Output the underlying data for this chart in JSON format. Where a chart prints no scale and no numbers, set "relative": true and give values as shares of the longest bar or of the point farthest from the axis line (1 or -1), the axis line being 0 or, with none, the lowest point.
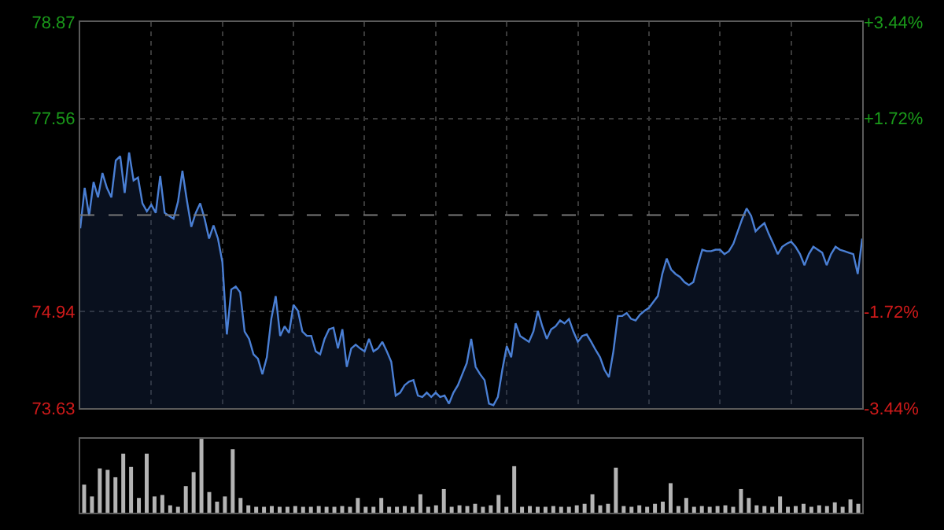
{
  "chart_data": [
    {
      "type": "area",
      "color": "#4a7fd4",
      "grid": true,
      "ylim": [
        73.63,
        78.87
      ],
      "yticks": [
        73.63,
        74.94,
        77.56,
        78.87
      ],
      "y2lim": [
        -3.44,
        3.44
      ],
      "y2ticks": [
        {
          "value": -3.44,
          "label": "-3.44%"
        },
        {
          "value": -1.72,
          "label": "-1.72%"
        },
        {
          "value": 1.72,
          "label": "+1.72%"
        },
        {
          "value": 3.44,
          "label": "+3.44%"
        }
      ],
      "ref_lines": [
        {
          "axis": "y",
          "value": 76.25,
          "line_style": "dashed"
        }
      ],
      "categories": [
        null,
        null,
        null,
        null,
        null,
        null,
        null,
        null,
        null,
        null,
        null,
        null,
        null,
        null,
        null,
        null,
        null,
        null,
        null,
        null,
        null,
        null,
        null,
        null,
        null,
        null,
        null,
        null,
        null,
        null,
        null,
        null,
        null,
        null,
        null,
        null,
        null,
        null,
        null,
        null,
        null,
        null,
        null,
        null,
        null,
        null,
        null,
        null,
        null,
        null,
        null,
        null,
        null,
        null,
        null,
        null,
        null,
        null,
        null,
        null,
        null,
        null,
        null,
        null,
        null,
        null,
        null,
        null,
        null,
        null,
        null,
        null,
        null,
        null,
        null,
        null,
        null,
        null,
        null,
        null,
        null,
        null,
        null,
        null,
        null,
        null,
        null,
        null,
        null,
        null,
        null,
        null,
        null,
        null,
        null,
        null,
        null,
        null,
        null,
        null,
        null,
        null,
        null,
        null,
        null,
        null,
        null,
        null,
        null,
        null,
        null,
        null,
        null,
        null,
        null,
        null,
        null,
        null,
        null,
        null,
        null,
        null,
        null,
        null,
        null,
        null,
        null,
        null,
        null,
        null,
        null,
        null,
        null,
        null,
        null,
        null,
        null,
        null,
        null,
        null,
        null,
        null,
        null,
        null,
        null,
        null,
        null,
        null,
        null,
        null,
        null,
        null,
        null,
        null,
        null,
        null,
        null,
        null,
        null,
        null,
        null,
        null,
        null,
        null,
        null,
        null,
        null,
        null,
        null,
        null,
        null,
        null,
        null,
        null,
        null,
        null,
        null
      ],
      "values": [
        76.07,
        76.62,
        76.24,
        76.7,
        76.49,
        76.82,
        76.62,
        76.49,
        76.99,
        77.05,
        76.55,
        77.1,
        76.72,
        76.76,
        76.41,
        76.3,
        76.39,
        76.28,
        76.78,
        76.28,
        76.24,
        76.2,
        76.43,
        76.85,
        76.45,
        76.09,
        76.28,
        76.41,
        76.2,
        75.93,
        76.11,
        75.93,
        75.61,
        74.63,
        75.24,
        75.28,
        75.2,
        74.67,
        74.57,
        74.36,
        74.3,
        74.09,
        74.32,
        74.84,
        75.15,
        74.61,
        74.74,
        74.65,
        75.03,
        74.95,
        74.67,
        74.61,
        74.61,
        74.4,
        74.36,
        74.57,
        74.7,
        74.72,
        74.44,
        74.7,
        74.19,
        74.44,
        74.49,
        74.44,
        74.4,
        74.57,
        74.4,
        74.44,
        74.53,
        74.4,
        74.26,
        73.8,
        73.84,
        73.94,
        73.99,
        74.01,
        73.8,
        73.78,
        73.84,
        73.78,
        73.84,
        73.78,
        73.8,
        73.69,
        73.84,
        73.94,
        74.09,
        74.24,
        74.57,
        74.19,
        74.09,
        74.01,
        73.69,
        73.67,
        73.78,
        74.15,
        74.47,
        74.32,
        74.78,
        74.61,
        74.57,
        74.53,
        74.67,
        74.95,
        74.74,
        74.57,
        74.7,
        74.74,
        74.82,
        74.78,
        74.84,
        74.67,
        74.53,
        74.61,
        74.63,
        74.53,
        74.42,
        74.32,
        74.15,
        74.05,
        74.4,
        74.88,
        74.88,
        74.92,
        74.84,
        74.82,
        74.9,
        74.95,
        74.99,
        75.07,
        75.15,
        75.45,
        75.66,
        75.51,
        75.45,
        75.41,
        75.34,
        75.3,
        75.34,
        75.57,
        75.78,
        75.76,
        75.76,
        75.78,
        75.78,
        75.72,
        75.76,
        75.86,
        76.03,
        76.2,
        76.34,
        76.24,
        76.03,
        76.09,
        76.14,
        75.99,
        75.86,
        75.72,
        75.82,
        75.86,
        75.89,
        75.82,
        75.72,
        75.57,
        75.72,
        75.82,
        75.78,
        75.74,
        75.57,
        75.72,
        75.82,
        75.78,
        75.76,
        75.74,
        75.72,
        75.45,
        75.93
      ]
    },
    {
      "type": "bar",
      "relative": true,
      "color": "#b4b4b4",
      "categories": [
        null,
        null,
        null,
        null,
        null,
        null,
        null,
        null,
        null,
        null,
        null,
        null,
        null,
        null,
        null,
        null,
        null,
        null,
        null,
        null,
        null,
        null,
        null,
        null,
        null,
        null,
        null,
        null,
        null,
        null,
        null,
        null,
        null,
        null,
        null,
        null,
        null,
        null,
        null,
        null,
        null,
        null,
        null,
        null,
        null,
        null,
        null,
        null,
        null,
        null,
        null,
        null,
        null,
        null,
        null,
        null,
        null,
        null,
        null,
        null,
        null,
        null,
        null,
        null,
        null,
        null,
        null,
        null,
        null,
        null,
        null,
        null,
        null,
        null,
        null,
        null,
        null,
        null,
        null,
        null,
        null,
        null,
        null,
        null,
        null,
        null,
        null,
        null,
        null,
        null,
        null,
        null,
        null,
        null,
        null,
        null,
        null,
        null,
        null,
        null
      ],
      "values": [
        0.38,
        0.22,
        0.6,
        0.58,
        0.48,
        0.8,
        0.62,
        0.2,
        0.8,
        0.22,
        0.24,
        0.1,
        0.08,
        0.36,
        0.55,
        1,
        0.28,
        0.15,
        0.22,
        0.86,
        0.2,
        0.1,
        0.08,
        0.08,
        0.09,
        0.08,
        0.08,
        0.09,
        0.08,
        0.08,
        0.09,
        0.08,
        0.08,
        0.09,
        0.08,
        0.2,
        0.08,
        0.08,
        0.2,
        0.08,
        0.08,
        0.09,
        0.08,
        0.25,
        0.08,
        0.1,
        0.32,
        0.08,
        0.1,
        0.09,
        0.12,
        0.08,
        0.1,
        0.24,
        0.08,
        0.63,
        0.08,
        0.09,
        0.08,
        0.08,
        0.09,
        0.08,
        0.08,
        0.1,
        0.12,
        0.25,
        0.1,
        0.12,
        0.61,
        0.09,
        0.08,
        0.1,
        0.08,
        0.12,
        0.15,
        0.4,
        0.09,
        0.2,
        0.08,
        0.09,
        0.08,
        0.09,
        0.1,
        0.08,
        0.32,
        0.2,
        0.1,
        0.09,
        0.08,
        0.22,
        0.08,
        0.09,
        0.12,
        0.08,
        0.1,
        0.09,
        0.14,
        0.08,
        0.18,
        0.12
      ]
    }
  ]
}
